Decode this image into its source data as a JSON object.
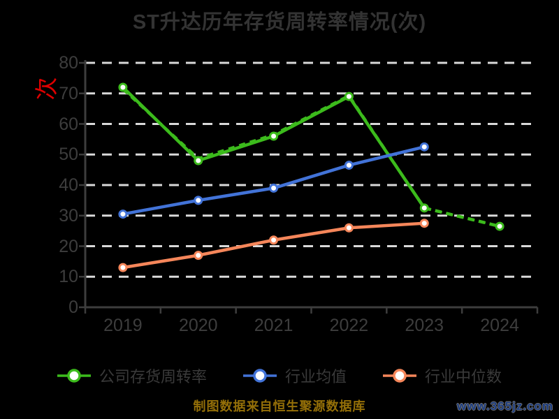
{
  "page": {
    "background": "#000000"
  },
  "header": {
    "title": "ST升达历年存货周转率情况(次)"
  },
  "y_axis": {
    "unit_label": "次",
    "unit_color": "#dd0000",
    "ticks": [
      0,
      10,
      20,
      30,
      40,
      50,
      60,
      70,
      80
    ]
  },
  "x_axis": {
    "categories": [
      "2019",
      "2020",
      "2021",
      "2022",
      "2023",
      "2024"
    ]
  },
  "legend": [
    {
      "label": "公司存货周转率",
      "color": "#3cbb1c"
    },
    {
      "label": "行业均值",
      "color": "#4273d8"
    },
    {
      "label": "行业中位数",
      "color": "#f5865a"
    }
  ],
  "footer": {
    "source": "制图数据来自恒生聚源数据库",
    "watermark": "www.365jz.com"
  },
  "colors": {
    "company_green": "#3cbb1c",
    "industry_avg_blue": "#4273d8",
    "industry_median_orange": "#f5865a",
    "gridline": "#d9d9d9",
    "axis": "#3d3d3d",
    "title_text": "#333333",
    "source_gold": "#946f08",
    "watermark_navy": "#1c3d82",
    "unit_red": "#dd0000"
  },
  "chart_data": {
    "type": "line",
    "title": "ST升达历年存货周转率情况(次)",
    "ylabel": "次",
    "xlabel": "",
    "categories": [
      "2019",
      "2020",
      "2021",
      "2022",
      "2023",
      "2024"
    ],
    "ylim": [
      0,
      80
    ],
    "yticks": [
      0,
      10,
      20,
      30,
      40,
      50,
      60,
      70,
      80
    ],
    "grid": "horizontal-dashed-light",
    "legend_position": "bottom",
    "series": [
      {
        "name": "公司存货周转率",
        "color": "#3cbb1c",
        "style": "solid",
        "dashed_from_index": 4,
        "in_legend": true,
        "markers": true,
        "values": [
          72,
          48,
          56,
          69,
          32.5,
          26.5
        ]
      },
      {
        "name": "公司存货周转率(虚线重叠)",
        "color": "#3cbb1c",
        "style": "dashed",
        "in_legend": false,
        "markers": false,
        "values": [
          71.4,
          48.7,
          56.5,
          69.3,
          32.5,
          26.5
        ]
      },
      {
        "name": "行业均值",
        "color": "#4273d8",
        "style": "solid",
        "in_legend": true,
        "markers": true,
        "values": [
          30.5,
          35,
          39,
          46.5,
          52.5,
          null
        ]
      },
      {
        "name": "行业中位数",
        "color": "#f5865a",
        "style": "solid",
        "in_legend": true,
        "markers": true,
        "values": [
          13,
          17,
          22,
          26,
          27.5,
          null
        ]
      }
    ]
  }
}
